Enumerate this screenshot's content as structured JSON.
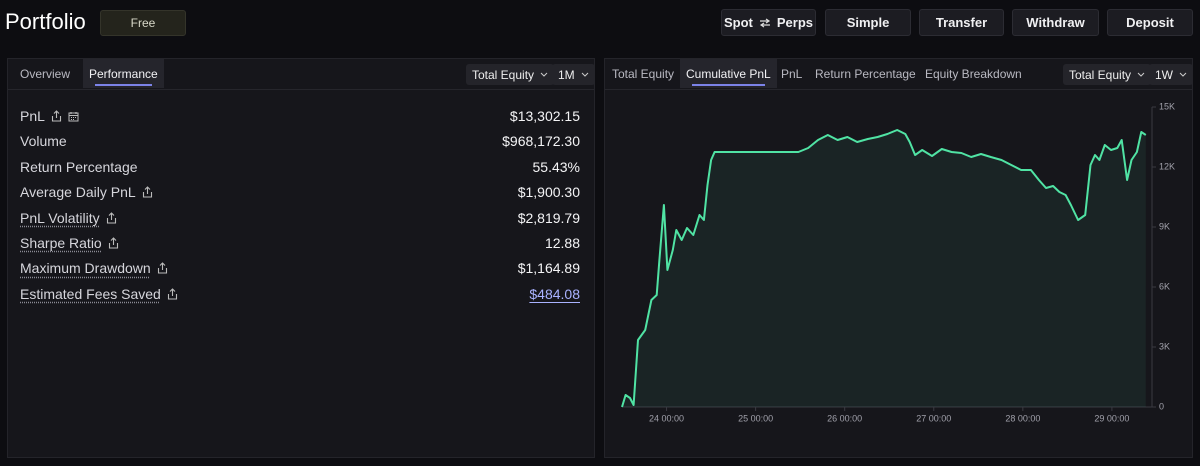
{
  "header": {
    "title": "Portfolio",
    "badge": "Free",
    "buttons": {
      "spot": "Spot",
      "perps": "Perps",
      "simple": "Simple",
      "transfer": "Transfer",
      "withdraw": "Withdraw",
      "deposit": "Deposit"
    }
  },
  "left_panel": {
    "tabs": [
      "Overview",
      "Performance"
    ],
    "dropdowns": [
      "Total Equity",
      "1M"
    ],
    "rows": [
      {
        "label": "PnL",
        "value": "$13,302.15"
      },
      {
        "label": "Volume",
        "value": "$968,172.30"
      },
      {
        "label": "Return Percentage",
        "value": "55.43%"
      },
      {
        "label": "Average Daily PnL",
        "value": "$1,900.30"
      },
      {
        "label": "PnL Volatility",
        "value": "$2,819.79"
      },
      {
        "label": "Sharpe Ratio",
        "value": "12.88"
      },
      {
        "label": "Maximum Drawdown",
        "value": "$1,164.89"
      },
      {
        "label": "Estimated Fees Saved",
        "value": "$484.08"
      }
    ]
  },
  "right_panel": {
    "tabs": [
      "Total Equity",
      "Cumulative PnL",
      "PnL",
      "Return Percentage",
      "Equity Breakdown"
    ],
    "dropdowns": [
      "Total Equity",
      "1W"
    ]
  },
  "chart_data": {
    "type": "area",
    "color": "#50e3a4",
    "x": [
      23.5,
      23.54,
      23.59,
      23.63,
      23.68,
      23.76,
      23.83,
      23.89,
      23.92,
      23.97,
      24.01,
      24.07,
      24.11,
      24.17,
      24.23,
      24.3,
      24.37,
      24.42,
      24.46,
      24.5,
      24.54,
      24.64,
      24.81,
      25.03,
      25.26,
      25.48,
      25.59,
      25.7,
      25.81,
      25.92,
      26.03,
      26.14,
      26.26,
      26.37,
      26.48,
      26.59,
      26.68,
      26.73,
      26.79,
      26.87,
      26.98,
      27.09,
      27.2,
      27.31,
      27.42,
      27.53,
      27.64,
      27.76,
      27.87,
      27.98,
      28.09,
      28.18,
      28.26,
      28.34,
      28.41,
      28.48,
      28.54,
      28.62,
      28.7,
      28.76,
      28.81,
      28.86,
      28.92,
      28.99,
      29.06,
      29.11,
      29.17,
      29.22,
      29.28,
      29.33,
      29.38
    ],
    "values": [
      0,
      600,
      450,
      100,
      3350,
      3850,
      5350,
      5600,
      7350,
      10100,
      6850,
      7850,
      8850,
      8350,
      8950,
      8600,
      9600,
      9350,
      11100,
      12350,
      12750,
      12750,
      12750,
      12750,
      12750,
      12750,
      12950,
      13350,
      13600,
      13350,
      13500,
      13250,
      13400,
      13500,
      13650,
      13850,
      13650,
      13250,
      12600,
      12850,
      12550,
      12900,
      12750,
      12700,
      12500,
      12650,
      12500,
      12350,
      12100,
      11850,
      11850,
      11350,
      10950,
      11050,
      10750,
      10600,
      10100,
      9350,
      9600,
      12100,
      12600,
      12350,
      13100,
      12850,
      12950,
      13350,
      11350,
      12350,
      12750,
      13750,
      13600
    ],
    "xlim": [
      23.5,
      29.45
    ],
    "ylim": [
      0,
      15000
    ],
    "xticks": [
      {
        "value": 24,
        "label": "24 00:00"
      },
      {
        "value": 25,
        "label": "25 00:00"
      },
      {
        "value": 26,
        "label": "26 00:00"
      },
      {
        "value": 27,
        "label": "27 00:00"
      },
      {
        "value": 28,
        "label": "28 00:00"
      },
      {
        "value": 29,
        "label": "29 00:00"
      }
    ],
    "yticks": [
      0,
      {
        "value": 3000,
        "label": "3K"
      },
      {
        "value": 6000,
        "label": "6K"
      },
      {
        "value": 9000,
        "label": "9K"
      },
      {
        "value": 12000,
        "label": "12K"
      },
      {
        "value": 15000,
        "label": "15K"
      }
    ]
  }
}
